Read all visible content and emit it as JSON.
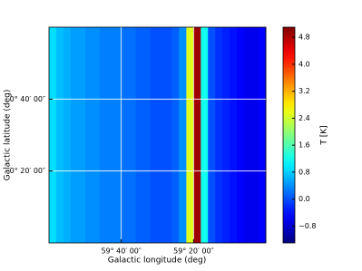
{
  "chart_data": {
    "type": "heatmap",
    "x_label": "Galactic longitude (deg)",
    "y_label": "Galactic latitude (deg)",
    "colorbar_label": "T [K]",
    "colormap": "jet",
    "xlim": [
      60.0,
      59.0
    ],
    "ylim": [
      0.0,
      1.0
    ],
    "xticks": [
      {
        "value": 59.6667,
        "label": "59° 40′ 00″"
      },
      {
        "value": 59.3333,
        "label": "59° 20′ 00″"
      }
    ],
    "yticks": [
      {
        "value": 0.6667,
        "label": "0° 40′ 00″"
      },
      {
        "value": 0.3333,
        "label": "0° 20′ 00″"
      }
    ],
    "grid": true,
    "values": [
      0.9,
      0.7,
      0.6,
      0.5,
      0.5,
      0.4,
      0.4,
      0.3,
      0.3,
      0.3,
      0.2,
      0.2,
      0.1,
      0.1,
      0.0,
      0.0,
      0.0,
      0.1,
      0.4,
      2.5,
      4.9,
      1.2,
      0.0,
      -0.2,
      -0.3,
      -0.4,
      -0.5,
      -0.6,
      -0.6,
      -0.5
    ],
    "clim": [
      -1.3,
      5.1
    ],
    "cticks": [
      {
        "value": -0.8,
        "label": "−0.8"
      },
      {
        "value": 0,
        "label": "0.0"
      },
      0.8,
      1.6,
      2.4,
      3.2,
      {
        "value": 4,
        "label": "4.0"
      },
      4.8
    ]
  }
}
